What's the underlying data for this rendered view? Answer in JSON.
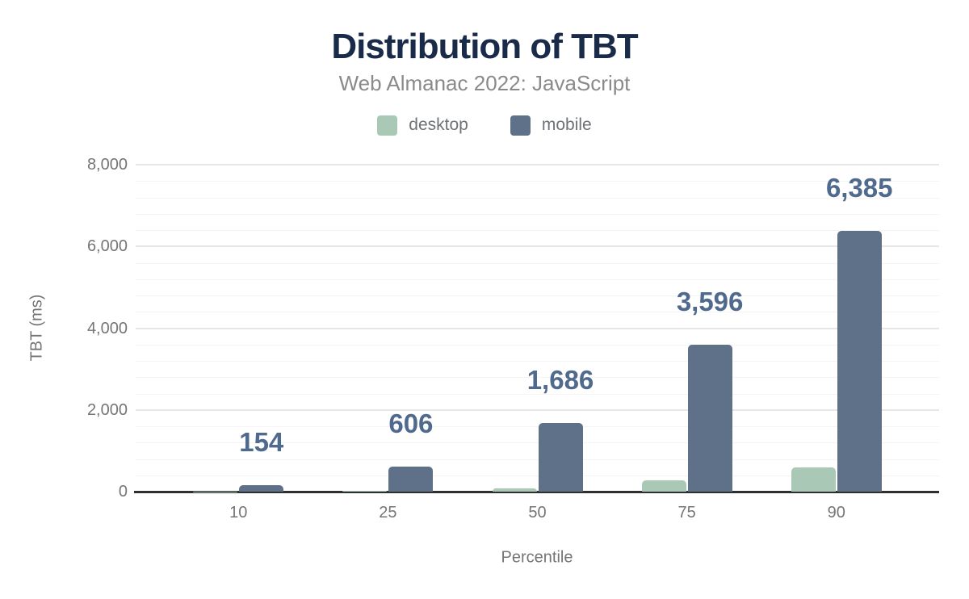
{
  "chart_data": {
    "type": "bar",
    "title": "Distribution of TBT",
    "subtitle": "Web Almanac 2022: JavaScript",
    "xlabel": "Percentile",
    "ylabel": "TBT (ms)",
    "categories": [
      "10",
      "25",
      "50",
      "75",
      "90"
    ],
    "ylim": [
      0,
      8000
    ],
    "y_ticks": [
      0,
      2000,
      4000,
      6000,
      8000
    ],
    "y_tick_labels": [
      "0",
      "2,000",
      "4,000",
      "6,000",
      "8,000"
    ],
    "minor_grid_step": 400,
    "grid": "horizontal major gridlines with 4 faint minor gridlines between each pair",
    "legend_position": "top center",
    "series": [
      {
        "name": "desktop",
        "color": "#a9c9b6",
        "values": [
          2,
          18,
          70,
          277,
          592
        ],
        "values_note": "desktop bars carry no data labels; values estimated from bar pixel heights",
        "data_labels": [
          "",
          "",
          "",
          "",
          ""
        ]
      },
      {
        "name": "mobile",
        "color": "#5f7189",
        "values": [
          154,
          606,
          1686,
          3596,
          6385
        ],
        "data_labels": [
          "154",
          "606",
          "1,686",
          "3,596",
          "6,385"
        ]
      }
    ],
    "data_label_color": "#506a8e",
    "axis_label_color": "#757575",
    "axis_line_color": "#2f2f2f",
    "title_color": "#1a2b49",
    "subtitle_color": "#8a8a8a",
    "background_color": "#ffffff"
  }
}
